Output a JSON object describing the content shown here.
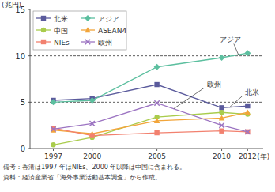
{
  "chart_data": {
    "type": "line",
    "y_label": "(兆円)",
    "x_label": "(年)",
    "x": [
      1997,
      2000,
      2005,
      2010,
      2012
    ],
    "xlim": [
      1995.2,
      2013.2
    ],
    "xticks": [
      1997,
      2000,
      2005,
      2010,
      2012
    ],
    "ylim": [
      0,
      15
    ],
    "yticks": [
      0,
      5,
      10,
      15
    ],
    "grid": true,
    "legend": "upper left",
    "series": [
      {
        "name": "北米",
        "color": "#5a5a9c",
        "marker": "square",
        "values": [
          5.2,
          5.4,
          6.9,
          4.4,
          4.6
        ]
      },
      {
        "name": "アジア",
        "color": "#5cbf9f",
        "marker": "diamond",
        "values": [
          5.0,
          5.2,
          8.8,
          9.8,
          10.3
        ]
      },
      {
        "name": "中国",
        "color": "#a9cc4c",
        "marker": "circle",
        "values": [
          0.4,
          1.2,
          3.4,
          3.9,
          3.7
        ]
      },
      {
        "name": "ASEAN4",
        "color": "#f2a53a",
        "marker": "triangle",
        "values": [
          2.0,
          1.6,
          3.0,
          3.3,
          3.9
        ]
      },
      {
        "name": "NIEs",
        "color": "#f2816f",
        "marker": "square",
        "values": [
          2.2,
          1.4,
          1.7,
          1.9,
          1.8
        ]
      },
      {
        "name": "欧州",
        "color": "#9c74c2",
        "marker": "x",
        "values": [
          2.1,
          2.7,
          4.9,
          2.5,
          1.8
        ]
      }
    ],
    "annotations": [
      {
        "text": "アジア",
        "x": 2011.3,
        "y": 10.1
      },
      {
        "text": "欧州",
        "x": 2006.3,
        "y": 4.3
      },
      {
        "text": "北米",
        "x": 2010.6,
        "y": 4.45
      }
    ],
    "notes": [
      "備考：香港は1997 年はNIEs、2000 年以降は中国に含まれる。",
      "資料：経済産業省「海外事業活動基本調査」から作成。"
    ]
  }
}
